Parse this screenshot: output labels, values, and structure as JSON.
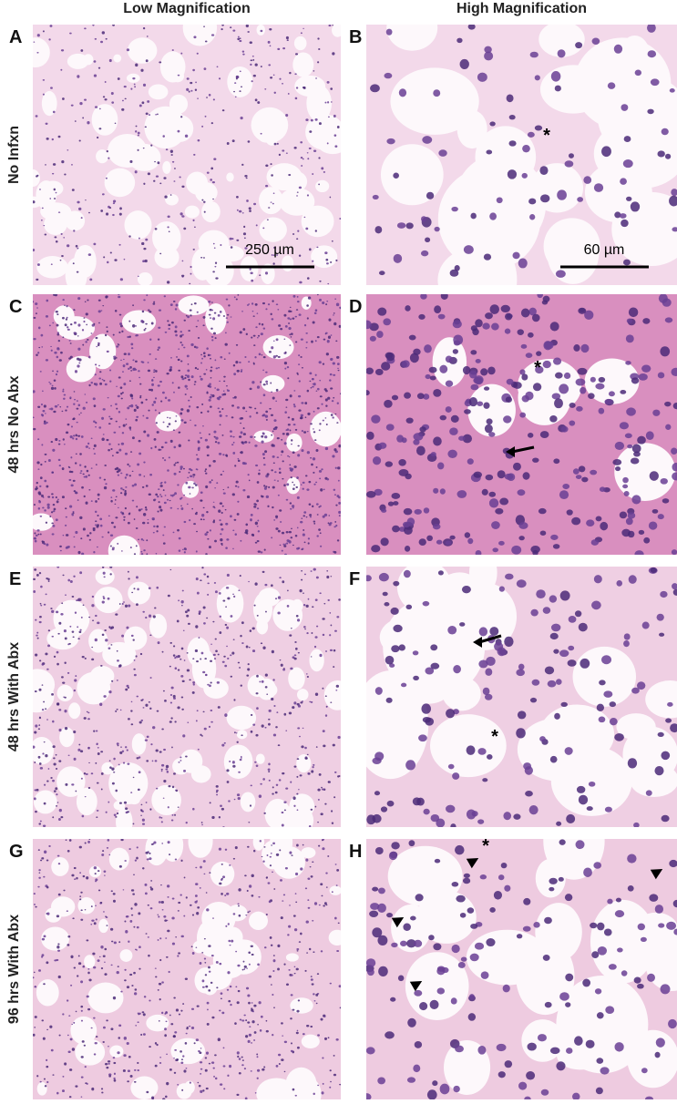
{
  "column_headers": [
    "Low Magnification",
    "High Magnification"
  ],
  "rows": [
    {
      "label": "No Infxn",
      "panels": [
        {
          "letter": "A",
          "scale_bar": "250 µm"
        },
        {
          "letter": "B",
          "scale_bar": "60 µm",
          "annotations": [
            "*"
          ]
        }
      ]
    },
    {
      "label": "48 hrs No Abx",
      "panels": [
        {
          "letter": "C"
        },
        {
          "letter": "D",
          "annotations": [
            "*"
          ]
        }
      ]
    },
    {
      "label": "48 hrs With Abx",
      "panels": [
        {
          "letter": "E"
        },
        {
          "letter": "F",
          "annotations": [
            "*"
          ]
        }
      ]
    },
    {
      "label": "96 hrs With Abx",
      "panels": [
        {
          "letter": "G"
        },
        {
          "letter": "H",
          "annotations": [
            "*"
          ]
        }
      ]
    }
  ]
}
